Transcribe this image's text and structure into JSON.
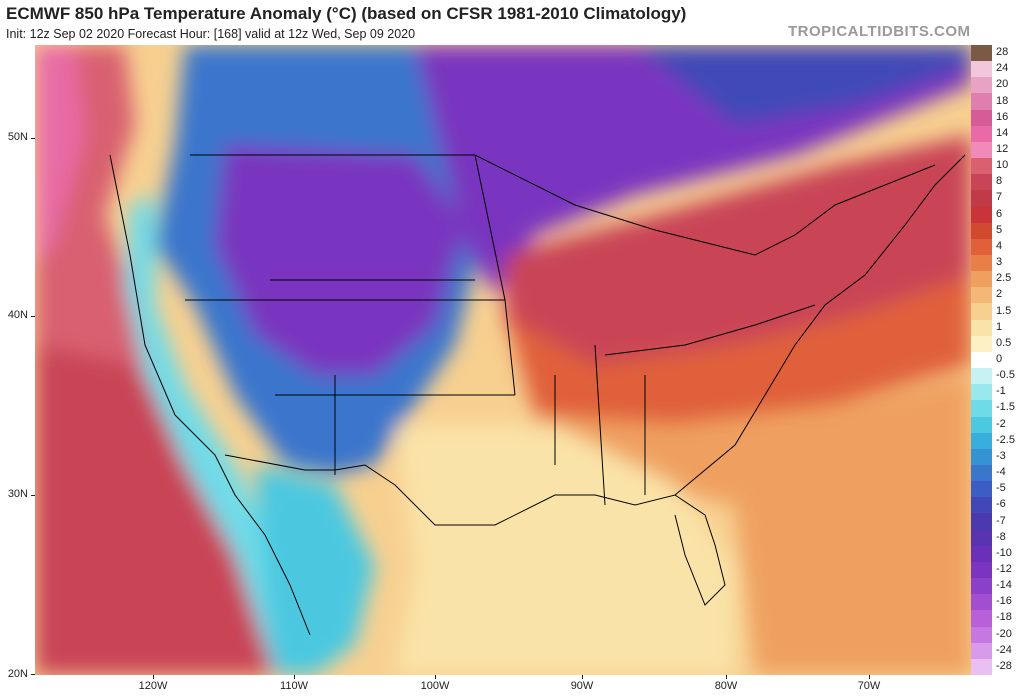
{
  "header": {
    "title": "ECMWF 850 hPa Temperature Anomaly (°C) (based on CFSR 1981-2010 Climatology)",
    "subtitle": "Init: 12z Sep 02 2020   Forecast Hour: [168]   valid at 12z Wed, Sep 09 2020",
    "watermark": "TROPICALTIDBITS.COM"
  },
  "axes": {
    "lat_labels": [
      "50N",
      "40N",
      "30N",
      "20N"
    ],
    "lon_labels": [
      "120W",
      "110W",
      "100W",
      "90W",
      "80W",
      "70W"
    ]
  },
  "colorbar": {
    "levels": [
      "28",
      "24",
      "20",
      "18",
      "16",
      "14",
      "12",
      "10",
      "8",
      "7",
      "6",
      "5",
      "4",
      "3",
      "2.5",
      "2",
      "1.5",
      "1",
      "0.5",
      "0",
      "-0.5",
      "-1",
      "-1.5",
      "-2",
      "-2.5",
      "-3",
      "-4",
      "-5",
      "-6",
      "-7",
      "-8",
      "-10",
      "-12",
      "-14",
      "-16",
      "-18",
      "-20",
      "-24",
      "-28"
    ],
    "colors": [
      "#7a5a44",
      "#f2c7dc",
      "#e8a2c4",
      "#df7fae",
      "#d65c98",
      "#e86aa6",
      "#f08ab8",
      "#d8606f",
      "#c94456",
      "#c13a48",
      "#c8343a",
      "#d14a30",
      "#e0603a",
      "#e87e48",
      "#efa060",
      "#f3b878",
      "#f7d090",
      "#fae3a8",
      "#fcf0c4",
      "#ffffff",
      "#c6f2f4",
      "#98e8ee",
      "#6fdbe8",
      "#4cc8e0",
      "#38aedc",
      "#3593d4",
      "#3a76cc",
      "#3c5ec4",
      "#4048b8",
      "#4a3aae",
      "#5a34b0",
      "#6a30b8",
      "#7a34c0",
      "#8a40c8",
      "#a24ed2",
      "#b860da",
      "#c778e0",
      "#d89aea",
      "#eac0f2"
    ]
  }
}
